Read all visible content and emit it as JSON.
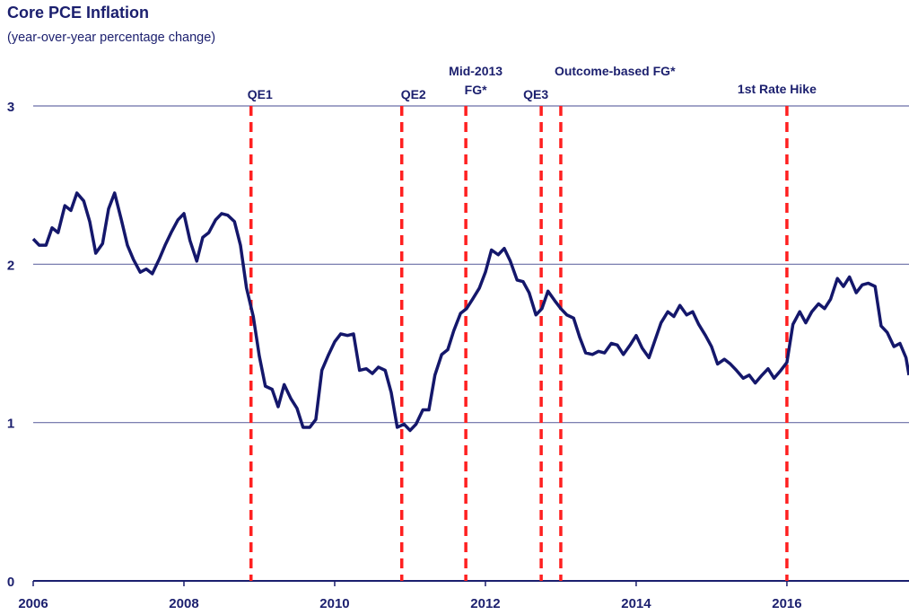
{
  "chart_data": {
    "type": "line",
    "title": "Core PCE Inflation",
    "subtitle": "(year-over-year percentage change)",
    "x": [
      2006.0,
      2006.08,
      2006.17,
      2006.25,
      2006.33,
      2006.42,
      2006.5,
      2006.58,
      2006.67,
      2006.75,
      2006.83,
      2006.92,
      2007.0,
      2007.08,
      2007.17,
      2007.25,
      2007.33,
      2007.42,
      2007.5,
      2007.58,
      2007.67,
      2007.75,
      2007.83,
      2007.92,
      2008.0,
      2008.08,
      2008.17,
      2008.25,
      2008.33,
      2008.42,
      2008.5,
      2008.58,
      2008.67,
      2008.75,
      2008.83,
      2008.92,
      2009.0,
      2009.08,
      2009.17,
      2009.25,
      2009.33,
      2009.42,
      2009.5,
      2009.58,
      2009.67,
      2009.75,
      2009.83,
      2009.92,
      2010.0,
      2010.08,
      2010.17,
      2010.25,
      2010.33,
      2010.42,
      2010.5,
      2010.58,
      2010.67,
      2010.75,
      2010.83,
      2010.92,
      2011.0,
      2011.08,
      2011.17,
      2011.25,
      2011.33,
      2011.42,
      2011.5,
      2011.58,
      2011.67,
      2011.75,
      2011.83,
      2011.92,
      2012.0,
      2012.08,
      2012.17,
      2012.25,
      2012.33,
      2012.42,
      2012.5,
      2012.58,
      2012.67,
      2012.75,
      2012.83,
      2012.92,
      2013.0,
      2013.08,
      2013.17,
      2013.25,
      2013.33,
      2013.42,
      2013.5,
      2013.58,
      2013.67,
      2013.75,
      2013.83,
      2013.92,
      2014.0,
      2014.08,
      2014.17,
      2014.25,
      2014.33,
      2014.42,
      2014.5,
      2014.58,
      2014.67,
      2014.75,
      2014.83,
      2014.92,
      2015.0,
      2015.08,
      2015.17,
      2015.25,
      2015.33,
      2015.42,
      2015.5,
      2015.58,
      2015.67,
      2015.75,
      2015.83,
      2015.92,
      2016.0,
      2016.08,
      2016.17,
      2016.25,
      2016.33,
      2016.42,
      2016.5,
      2016.58,
      2016.67,
      2016.75,
      2016.83,
      2016.92,
      2017.0,
      2017.08,
      2017.17,
      2017.25,
      2017.33,
      2017.42,
      2017.5,
      2017.58,
      2017.62
    ],
    "series": [
      {
        "name": "Core PCE",
        "color": "#14176b",
        "values": [
          2.16,
          2.12,
          2.12,
          2.23,
          2.2,
          2.37,
          2.34,
          2.45,
          2.4,
          2.27,
          2.07,
          2.13,
          2.35,
          2.45,
          2.28,
          2.12,
          2.03,
          1.95,
          1.97,
          1.94,
          2.03,
          2.12,
          2.2,
          2.28,
          2.32,
          2.15,
          2.02,
          2.17,
          2.2,
          2.28,
          2.32,
          2.31,
          2.27,
          2.12,
          1.85,
          1.67,
          1.42,
          1.23,
          1.21,
          1.1,
          1.24,
          1.15,
          1.09,
          0.97,
          0.97,
          1.02,
          1.33,
          1.43,
          1.51,
          1.56,
          1.55,
          1.56,
          1.33,
          1.34,
          1.31,
          1.35,
          1.33,
          1.19,
          0.97,
          0.99,
          0.95,
          0.99,
          1.08,
          1.08,
          1.3,
          1.43,
          1.46,
          1.58,
          1.69,
          1.72,
          1.78,
          1.85,
          1.95,
          2.09,
          2.06,
          2.1,
          2.02,
          1.9,
          1.89,
          1.82,
          1.68,
          1.72,
          1.83,
          1.77,
          1.72,
          1.68,
          1.66,
          1.54,
          1.44,
          1.43,
          1.45,
          1.44,
          1.5,
          1.49,
          1.43,
          1.49,
          1.55,
          1.47,
          1.41,
          1.52,
          1.63,
          1.7,
          1.67,
          1.74,
          1.68,
          1.7,
          1.62,
          1.55,
          1.48,
          1.37,
          1.4,
          1.37,
          1.33,
          1.28,
          1.3,
          1.25,
          1.3,
          1.34,
          1.28,
          1.33,
          1.38,
          1.62,
          1.7,
          1.63,
          1.7,
          1.75,
          1.72,
          1.78,
          1.91,
          1.86,
          1.92,
          1.82,
          1.87,
          1.88,
          1.86,
          1.61,
          1.57,
          1.48,
          1.5,
          1.41,
          1.3
        ]
      }
    ],
    "xlim": [
      2006,
      2017.62
    ],
    "xticks": [
      2006,
      2008,
      2010,
      2012,
      2014,
      2016
    ],
    "ylim": [
      0,
      3
    ],
    "yticks": [
      0,
      1,
      2,
      3
    ],
    "grid": true,
    "annotation_color": "#ff2020",
    "annotations": [
      {
        "lines": [
          "QE1"
        ],
        "x": 2008.89
      },
      {
        "lines": [
          "QE2"
        ],
        "x": 2010.89
      },
      {
        "lines": [
          "Mid-2013",
          "FG*"
        ],
        "x": 2011.74
      },
      {
        "lines": [
          "QE3"
        ],
        "x": 2012.74
      },
      {
        "lines": [
          "Outcome-based FG*"
        ],
        "x": 2013.0
      },
      {
        "lines": [
          "1st Rate Hike"
        ],
        "x": 2016.0
      }
    ]
  }
}
